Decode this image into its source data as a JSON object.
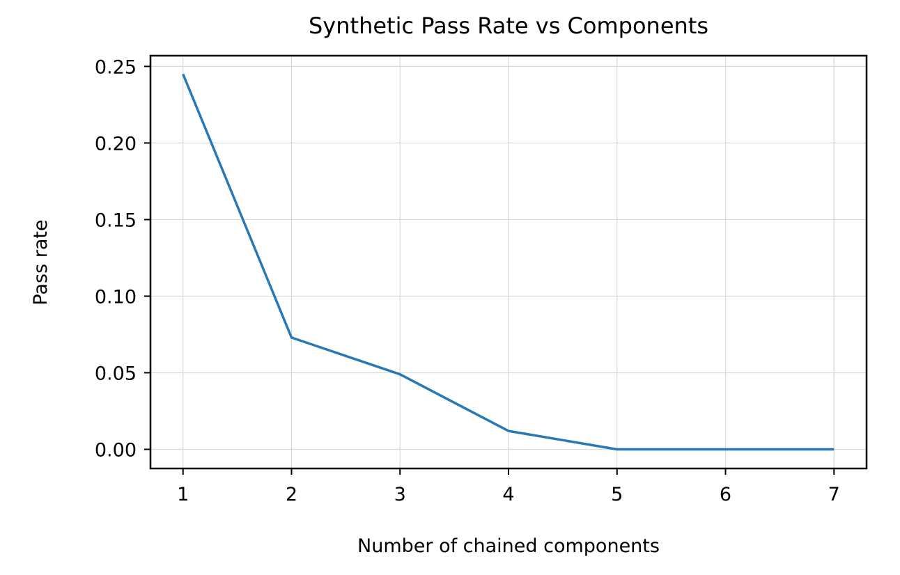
{
  "chart_data": {
    "type": "line",
    "title": "Synthetic Pass Rate vs Components",
    "xlabel": "Number of chained components",
    "ylabel": "Pass rate",
    "x": [
      1,
      2,
      3,
      4,
      5,
      6,
      7
    ],
    "series": [
      {
        "values": [
          0.245,
          0.073,
          0.049,
          0.012,
          0.0,
          0.0,
          0.0
        ],
        "color": "#2878b5"
      }
    ],
    "xticks": [
      "1",
      "2",
      "3",
      "4",
      "5",
      "6",
      "7"
    ],
    "yticks": [
      "0.00",
      "0.05",
      "0.10",
      "0.15",
      "0.20",
      "0.25"
    ],
    "xlim": [
      0.7,
      7.3
    ],
    "ylim": [
      -0.0125,
      0.257
    ],
    "grid": true,
    "legend": "none"
  }
}
